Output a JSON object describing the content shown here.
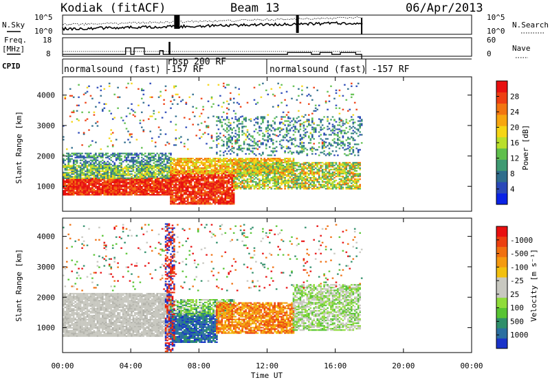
{
  "header": {
    "station": "Kodiak (fitACF)",
    "beam": "Beam 13",
    "date": "06/Apr/2013"
  },
  "labels": {
    "nsky": "N.Sky",
    "nsearch": "N.Search",
    "freq": "Freq.",
    "mhz": "[MHz]",
    "nave": "Nave",
    "cpid": "CPID",
    "xlabel": "Time UT"
  },
  "noise_panel": {
    "left_ticks": [
      "10^5",
      "10^0"
    ],
    "right_ticks": [
      "10^5",
      "10^0"
    ]
  },
  "freq_panel": {
    "left_ticks": [
      "18",
      "8"
    ],
    "right_ticks": [
      "60",
      "0"
    ]
  },
  "cpid_segments": [
    {
      "label": "normalsound (fast) -157 RF",
      "start_hr": 0.0,
      "end_hr": 6.1
    },
    {
      "label": "rbsp 200 RF",
      "start_hr": 6.1,
      "end_hr": 12.0
    },
    {
      "label": "normalsound (fast) -157 RF",
      "start_hr": 12.0,
      "end_hr": 17.6
    }
  ],
  "chart_data": [
    {
      "type": "heatmap",
      "title": "",
      "xlabel": "Time UT",
      "ylabel": "Slant Range [km]",
      "xlim_hr": [
        0,
        24
      ],
      "ylim": [
        180,
        4600
      ],
      "x_ticks": [
        "00:00",
        "04:00",
        "08:00",
        "12:00",
        "16:00",
        "20:00",
        "00:00"
      ],
      "y_ticks": [
        "1000",
        "2000",
        "3000",
        "4000"
      ],
      "colorbar": {
        "label": "Power [dB]",
        "ticks": [
          "4",
          "8",
          "12",
          "16",
          "20",
          "24",
          "28"
        ],
        "colors": [
          "#0a22e6",
          "#2a48b8",
          "#2f6d8c",
          "#3f9a72",
          "#5fbf4c",
          "#b9df2b",
          "#f5d515",
          "#f7a60f",
          "#f27510",
          "#ee3f12",
          "#e81010"
        ]
      },
      "data_extent_hr": [
        0.0,
        17.6
      ]
    },
    {
      "type": "heatmap",
      "title": "",
      "xlabel": "Time UT",
      "ylabel": "Slant Range [km]",
      "xlim_hr": [
        0,
        24
      ],
      "ylim": [
        180,
        4600
      ],
      "x_ticks": [
        "00:00",
        "04:00",
        "08:00",
        "12:00",
        "16:00",
        "20:00",
        "00:00"
      ],
      "y_ticks": [
        "1000",
        "2000",
        "3000",
        "4000"
      ],
      "colorbar": {
        "label": "Velocity [m s⁻¹]",
        "ticks": [
          "1000",
          "500",
          "100",
          "25",
          "-25",
          "-100",
          "-500",
          "-1000"
        ],
        "colors": [
          "#1a33c9",
          "#2b6fa0",
          "#2f8f6a",
          "#57c433",
          "#8fdc3a",
          "#c8c8c0",
          "#c8c8c0",
          "#f2c010",
          "#f59a10",
          "#f07010",
          "#ec4010",
          "#e81010"
        ]
      },
      "data_extent_hr": [
        0.0,
        17.6
      ]
    }
  ]
}
